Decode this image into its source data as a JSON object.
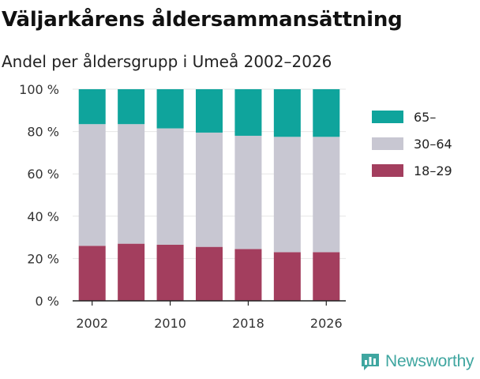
{
  "title": "Väljarkårens åldersammansättning",
  "subtitle": "Andel per åldersgrupp i Umeå  2002–2026",
  "logo": {
    "text": "Newsworthy",
    "icon": "bar-chart-speech-bubble-icon",
    "color": "#3fa6a0"
  },
  "chart_data": {
    "type": "bar",
    "stacked": true,
    "title": "Väljarkårens åldersammansättning",
    "subtitle": "Andel per åldersgrupp i Umeå  2002–2026",
    "categories": [
      "2002",
      "2006",
      "2010",
      "2014",
      "2018",
      "2022",
      "2026"
    ],
    "x_tick_labels": [
      "2002",
      "2010",
      "2018",
      "2026"
    ],
    "series": [
      {
        "name": "18–29",
        "color": "#a33e5e",
        "values": [
          26,
          27,
          26.5,
          25.5,
          24.5,
          23,
          23
        ]
      },
      {
        "name": "30–64",
        "color": "#c8c7d2",
        "values": [
          57.5,
          56.5,
          55,
          54,
          53.5,
          54.5,
          54.5
        ]
      },
      {
        "name": "65–",
        "color": "#0fa49c",
        "values": [
          16.5,
          16.5,
          18.5,
          20.5,
          22,
          22.5,
          22.5
        ]
      }
    ],
    "y_ticks": [
      "0 %",
      "20 %",
      "40 %",
      "60 %",
      "80 %",
      "100 %"
    ],
    "ylim": [
      0,
      100
    ],
    "grid": true,
    "legend_position": "right",
    "xlabel": "",
    "ylabel": ""
  }
}
